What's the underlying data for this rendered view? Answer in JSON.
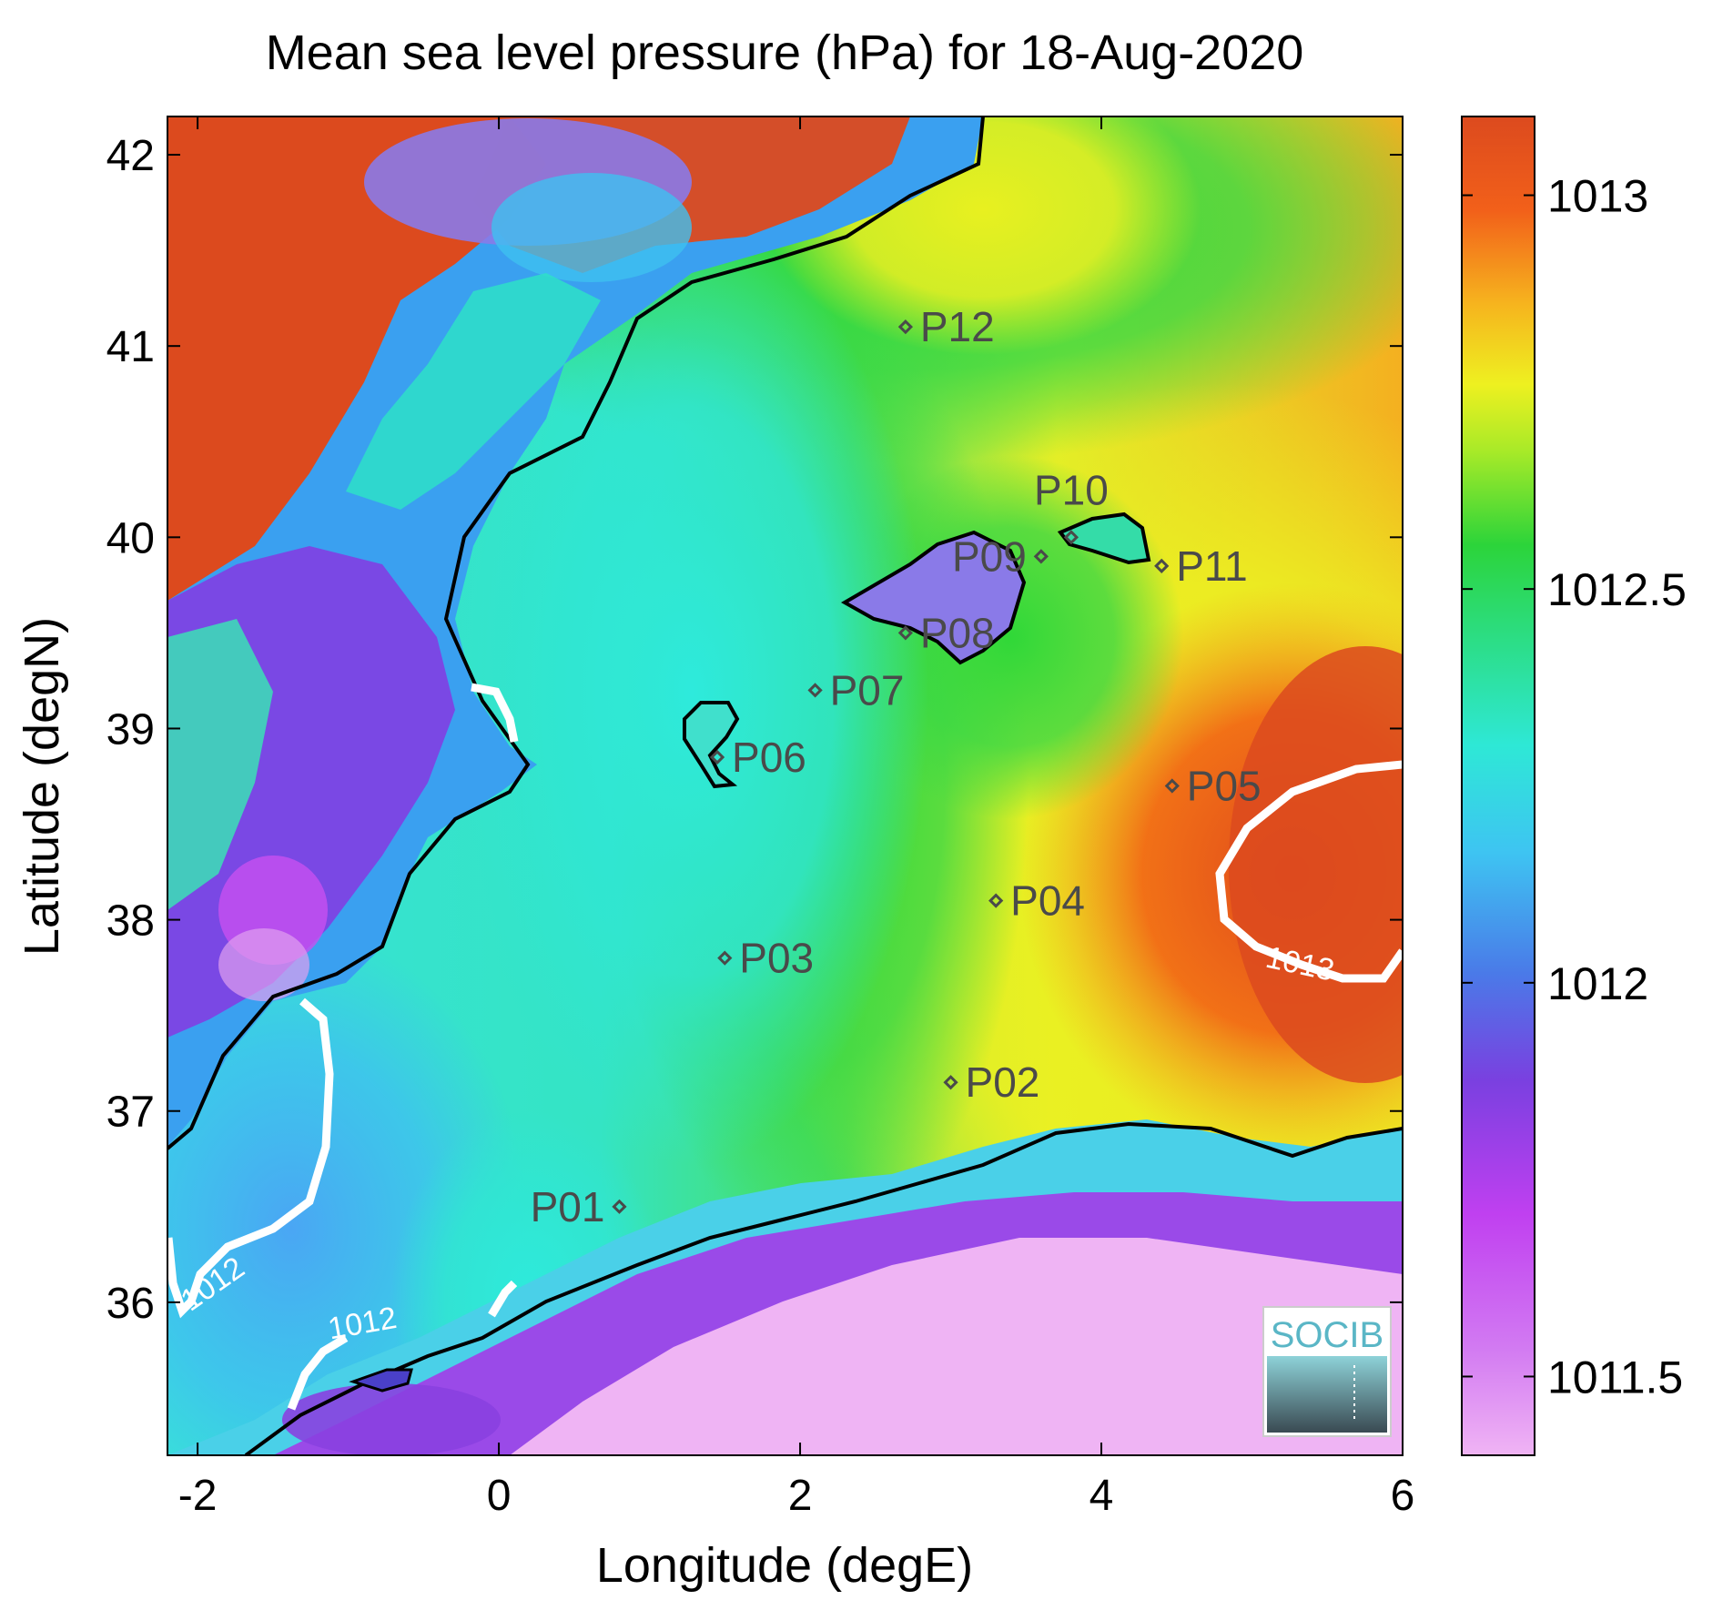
{
  "chart_data": {
    "type": "heatmap",
    "title": "Mean sea level pressure (hPa) for 18-Aug-2020",
    "xlabel": "Longitude (degE)",
    "ylabel": "Latitude (degN)",
    "xlim": [
      -2.2,
      6
    ],
    "ylim": [
      35.2,
      42.2
    ],
    "x_ticks": [
      -2,
      0,
      2,
      4,
      6
    ],
    "x_tick_labels": [
      "-2",
      "0",
      "2",
      "4",
      "6"
    ],
    "y_ticks": [
      36,
      37,
      38,
      39,
      40,
      41,
      42
    ],
    "y_tick_labels": [
      "36",
      "37",
      "38",
      "39",
      "40",
      "41",
      "42"
    ],
    "colorbar": {
      "range": [
        1011.4,
        1013.1
      ],
      "ticks": [
        1011.5,
        1012,
        1012.5,
        1013
      ],
      "tick_labels": [
        "1011.5",
        "1012",
        "1012.5",
        "1013"
      ],
      "colors": [
        "#f0b4f4",
        "#cc40f2",
        "#7a3fe0",
        "#3fa0f4",
        "#2ee6e2",
        "#2cd63a",
        "#e4f224",
        "#f6a420",
        "#f0581a",
        "#dc4a1e"
      ]
    },
    "contour_labels": [
      "1012",
      "1012",
      "1013"
    ],
    "stations": [
      {
        "name": "P01",
        "lon": 0.8,
        "lat": 36.5
      },
      {
        "name": "P02",
        "lon": 3.0,
        "lat": 37.15
      },
      {
        "name": "P03",
        "lon": 1.5,
        "lat": 37.8
      },
      {
        "name": "P04",
        "lon": 3.3,
        "lat": 38.1
      },
      {
        "name": "P05",
        "lon": 4.47,
        "lat": 38.7
      },
      {
        "name": "P06",
        "lon": 1.45,
        "lat": 38.85
      },
      {
        "name": "P07",
        "lon": 2.1,
        "lat": 39.2
      },
      {
        "name": "P08",
        "lon": 2.7,
        "lat": 39.5
      },
      {
        "name": "P09",
        "lon": 3.6,
        "lat": 39.9
      },
      {
        "name": "P10",
        "lon": 3.8,
        "lat": 40.0
      },
      {
        "name": "P11",
        "lon": 4.4,
        "lat": 39.85
      },
      {
        "name": "P12",
        "lon": 2.7,
        "lat": 41.1
      }
    ],
    "logo_text": "SOCIB"
  }
}
